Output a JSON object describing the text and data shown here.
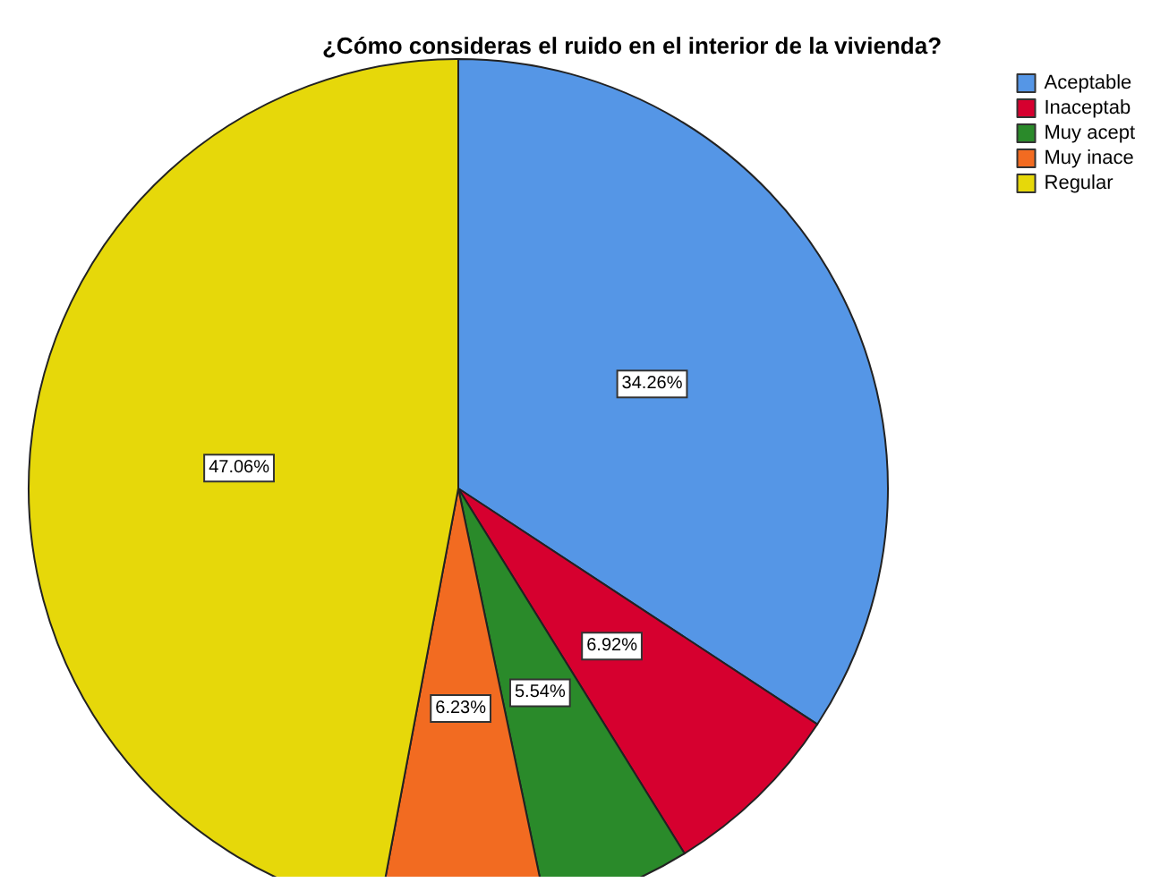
{
  "chart_data": {
    "type": "pie",
    "title": "¿Cómo consideras el ruido en el interior de la vivienda?",
    "categories": [
      "Aceptable",
      "Inaceptab",
      "Muy acept",
      "Muy inace",
      "Regular"
    ],
    "values": [
      34.26,
      6.92,
      5.54,
      6.23,
      47.06
    ],
    "value_labels": [
      "34.26%",
      "6.92%",
      "5.54%",
      "6.23%",
      "47.06%"
    ],
    "colors": [
      "#5596e6",
      "#d6002f",
      "#2a8a2a",
      "#f26b21",
      "#e6d80a"
    ],
    "legend": "top right"
  }
}
